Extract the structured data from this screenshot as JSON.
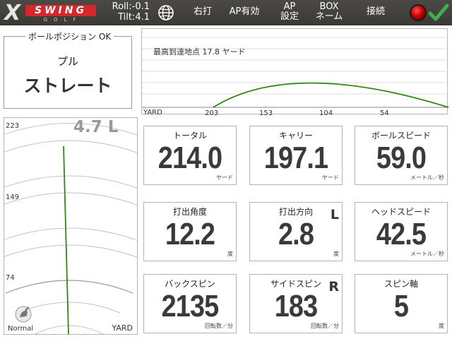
{
  "header": {
    "logo": {
      "x": "X",
      "swing": "SWING",
      "golf": "GOLF"
    },
    "roll": "Roll:-0.1",
    "tilt": "Tilt:4.1",
    "handedness_button": "右打",
    "ap_button": "AP有効",
    "ap_settings_button": [
      "AP",
      "設定"
    ],
    "box_name_button": [
      "BOX",
      "ネーム"
    ],
    "connect_button": "接続",
    "status_color": "#cc0000",
    "check_color": "#3cb34a"
  },
  "ball_position": {
    "label": "ボールポジション OK",
    "shot_type": "プル",
    "shot_shape": "ストレート"
  },
  "trajectory": {
    "apex_label": "最高到達地点 17.8 ヤード",
    "axis_label": "YARD",
    "ticks": [
      "203",
      "153",
      "104",
      "54"
    ]
  },
  "dispersion": {
    "offline": "4.7 L",
    "ticks": [
      "223",
      "149",
      "74"
    ],
    "axis_label": "YARD",
    "club_mode": "Normal"
  },
  "metrics": [
    {
      "label": "トータル",
      "value": "214.0",
      "unit": "ヤード",
      "dir": ""
    },
    {
      "label": "キャリー",
      "value": "197.1",
      "unit": "ヤード",
      "dir": ""
    },
    {
      "label": "ボールスピード",
      "value": "59.0",
      "unit": "メートル／秒",
      "dir": ""
    },
    {
      "label": "打出角度",
      "value": "12.2",
      "unit": "度",
      "dir": ""
    },
    {
      "label": "打出方向",
      "value": "2.8",
      "unit": "度",
      "dir": "L"
    },
    {
      "label": "ヘッドスピード",
      "value": "42.5",
      "unit": "メートル／秒",
      "dir": ""
    },
    {
      "label": "バックスピン",
      "value": "2135",
      "unit": "回転数／分",
      "dir": ""
    },
    {
      "label": "サイドスピン",
      "value": "183",
      "unit": "回転数／分",
      "dir": "R"
    },
    {
      "label": "スピン軸",
      "value": "5",
      "unit": "度",
      "dir": ""
    }
  ]
}
